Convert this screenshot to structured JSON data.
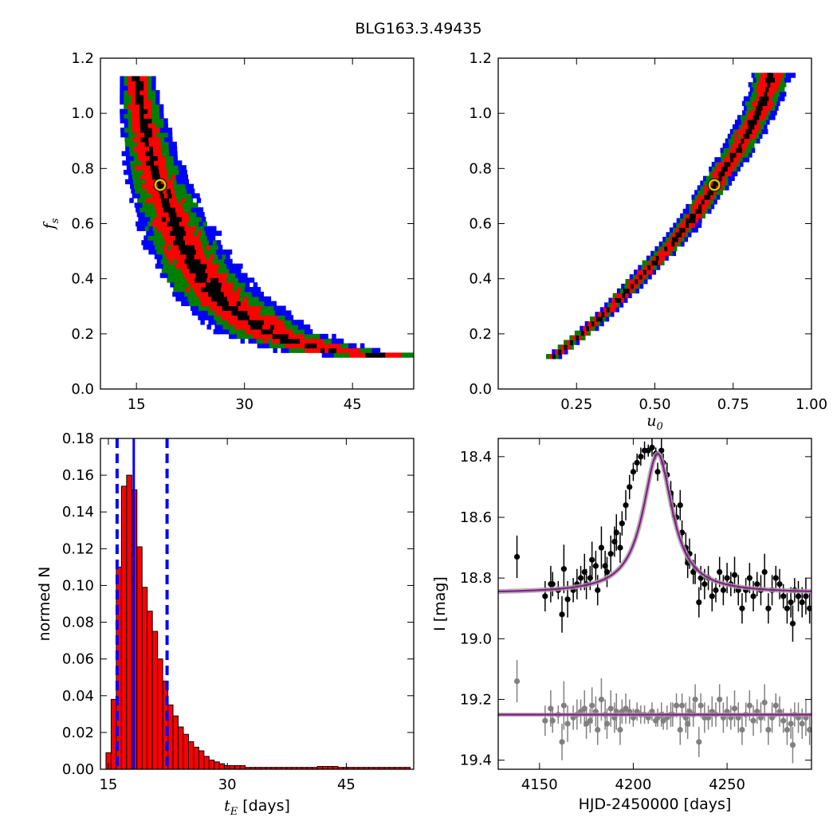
{
  "figure": {
    "title": "BLG163.3.49435"
  },
  "chart_data": [
    {
      "type": "heatmap",
      "panel": "top-left",
      "xlabel": "",
      "ylabel": "f",
      "ylabel_subscript": "s",
      "xlim": [
        10,
        53.5
      ],
      "ylim": [
        0,
        1.2
      ],
      "xticks": [
        15,
        30,
        45
      ],
      "yticks": [
        0.0,
        0.2,
        0.4,
        0.6,
        0.8,
        1.0,
        1.2
      ],
      "colors": {
        "blue": "#0000ff",
        "green": "#007f00",
        "red": "#ff0000",
        "black": "#000000"
      },
      "best_fit": {
        "x": 18.3,
        "y": 0.74
      },
      "ridge": [
        [
          14.8,
          1.13
        ],
        [
          15.5,
          1.0
        ],
        [
          16.2,
          0.9
        ],
        [
          17.0,
          0.8
        ],
        [
          18.0,
          0.72
        ],
        [
          19.2,
          0.64
        ],
        [
          20.5,
          0.56
        ],
        [
          22.0,
          0.48
        ],
        [
          24.0,
          0.4
        ],
        [
          26.5,
          0.32
        ],
        [
          29.5,
          0.26
        ],
        [
          33.0,
          0.2
        ],
        [
          37.0,
          0.16
        ],
        [
          42.0,
          0.13
        ],
        [
          48.0,
          0.115
        ]
      ]
    },
    {
      "type": "heatmap",
      "panel": "top-right",
      "xlabel": "u",
      "xlabel_subscript": "0",
      "ylabel": "",
      "xlim": [
        0,
        1.0
      ],
      "ylim": [
        0,
        1.2
      ],
      "xticks": [
        0.25,
        0.5,
        0.75,
        1.0
      ],
      "xtick_labels": [
        "0.25",
        "0.50",
        "0.75",
        "1.00"
      ],
      "yticks": [
        0.0,
        0.2,
        0.4,
        0.6,
        0.8,
        1.0,
        1.2
      ],
      "best_fit": {
        "x": 0.69,
        "y": 0.74
      },
      "ridge": [
        [
          0.17,
          0.11
        ],
        [
          0.25,
          0.18
        ],
        [
          0.35,
          0.28
        ],
        [
          0.45,
          0.4
        ],
        [
          0.55,
          0.52
        ],
        [
          0.62,
          0.62
        ],
        [
          0.69,
          0.74
        ],
        [
          0.76,
          0.86
        ],
        [
          0.82,
          0.98
        ],
        [
          0.87,
          1.13
        ]
      ]
    },
    {
      "type": "bar",
      "panel": "bottom-left",
      "xlabel": "t",
      "xlabel_subscript": "E",
      "xlabel_units": " [days]",
      "ylabel": "normed N",
      "xlim": [
        14,
        53.5
      ],
      "ylim": [
        0,
        0.18
      ],
      "xticks": [
        15,
        30,
        45
      ],
      "yticks": [
        0.0,
        0.02,
        0.04,
        0.06,
        0.08,
        0.1,
        0.12,
        0.14,
        0.16,
        0.18
      ],
      "ytick_labels": [
        "0.00",
        "0.02",
        "0.04",
        "0.06",
        "0.08",
        "0.10",
        "0.12",
        "0.14",
        "0.16",
        "0.18"
      ],
      "bin_start": 14.7,
      "bin_width": 0.65,
      "values": [
        0.009,
        0.038,
        0.11,
        0.154,
        0.16,
        0.152,
        0.121,
        0.099,
        0.086,
        0.075,
        0.06,
        0.048,
        0.035,
        0.029,
        0.023,
        0.019,
        0.015,
        0.012,
        0.01,
        0.007,
        0.005,
        0.004,
        0.003,
        0.002,
        0.002,
        0.002,
        0.002,
        0.001,
        0.001,
        0.001,
        0.001,
        0.001,
        0.001,
        0.001,
        0.001,
        0.001,
        0.001,
        0.001,
        0.001,
        0.001,
        0.001,
        0.0015,
        0.0015,
        0.0015,
        0.0015,
        0.001,
        0.001,
        0.001,
        0.001,
        0.001,
        0.001,
        0.001,
        0.001,
        0.001,
        0.001,
        0.001,
        0.001,
        0.001,
        0.001
      ],
      "median": 18.2,
      "interval": [
        16.1,
        22.4
      ],
      "bar_color": "#ff0000"
    },
    {
      "type": "scatter",
      "panel": "bottom-right",
      "xlabel": "HJD-2450000 [days]",
      "ylabel": "I [mag]",
      "xlim": [
        4128,
        4295
      ],
      "ylim": [
        19.43,
        18.34
      ],
      "xticks": [
        4150,
        4200,
        4250
      ],
      "yticks": [
        18.4,
        18.6,
        18.8,
        19.0,
        19.2,
        19.4
      ],
      "model": {
        "t0": 4213,
        "baseline": 18.85,
        "amplitude": 0.46,
        "width": 9.5
      },
      "residual_baseline": 19.25,
      "colors": {
        "data": "#000000",
        "residuals": "#808080",
        "model": "#8b1a8b"
      },
      "series": [
        {
          "values": [
            [
              4138,
              18.73,
              0.07
            ],
            [
              4153,
              18.86,
              0.05
            ],
            [
              4156,
              18.82,
              0.06
            ],
            [
              4157,
              18.82,
              0.04
            ],
            [
              4160,
              18.84,
              0.03
            ],
            [
              4162,
              18.92,
              0.06
            ],
            [
              4163,
              18.77,
              0.08
            ],
            [
              4165,
              18.87,
              0.06
            ],
            [
              4168,
              18.84,
              0.04
            ],
            [
              4170,
              18.82,
              0.05
            ],
            [
              4172,
              18.8,
              0.04
            ],
            [
              4174,
              18.78,
              0.06
            ],
            [
              4175,
              18.82,
              0.05
            ],
            [
              4177,
              18.8,
              0.04
            ],
            [
              4178,
              18.74,
              0.06
            ],
            [
              4180,
              18.76,
              0.05
            ],
            [
              4181,
              18.84,
              0.05
            ],
            [
              4183,
              18.7,
              0.07
            ],
            [
              4185,
              18.76,
              0.05
            ],
            [
              4186,
              18.78,
              0.05
            ],
            [
              4188,
              18.72,
              0.06
            ],
            [
              4190,
              18.68,
              0.05
            ],
            [
              4191,
              18.65,
              0.06
            ],
            [
              4193,
              18.7,
              0.05
            ],
            [
              4194,
              18.62,
              0.04
            ],
            [
              4196,
              18.56,
              0.05
            ],
            [
              4198,
              18.5,
              0.04
            ],
            [
              4200,
              18.45,
              0.03
            ],
            [
              4202,
              18.42,
              0.03
            ],
            [
              4204,
              18.4,
              0.03
            ],
            [
              4206,
              18.38,
              0.03
            ],
            [
              4208,
              18.38,
              0.02
            ],
            [
              4210,
              18.37,
              0.03
            ],
            [
              4212,
              18.39,
              0.02
            ],
            [
              4213,
              18.45,
              0.03
            ],
            [
              4215,
              18.38,
              0.04
            ],
            [
              4216,
              18.42,
              0.03
            ],
            [
              4218,
              18.46,
              0.04
            ],
            [
              4220,
              18.52,
              0.04
            ],
            [
              4221,
              18.56,
              0.04
            ],
            [
              4223,
              18.6,
              0.04
            ],
            [
              4225,
              18.56,
              0.05
            ],
            [
              4226,
              18.65,
              0.04
            ],
            [
              4228,
              18.7,
              0.05
            ],
            [
              4229,
              18.75,
              0.05
            ],
            [
              4230,
              18.72,
              0.05
            ],
            [
              4232,
              18.78,
              0.04
            ],
            [
              4233,
              18.77,
              0.05
            ],
            [
              4235,
              18.88,
              0.05
            ],
            [
              4236,
              18.8,
              0.04
            ],
            [
              4238,
              18.82,
              0.05
            ],
            [
              4240,
              18.8,
              0.04
            ],
            [
              4242,
              18.86,
              0.05
            ],
            [
              4244,
              18.84,
              0.04
            ],
            [
              4246,
              18.78,
              0.05
            ],
            [
              4248,
              18.84,
              0.05
            ],
            [
              4250,
              18.8,
              0.05
            ],
            [
              4252,
              18.82,
              0.04
            ],
            [
              4254,
              18.79,
              0.06
            ],
            [
              4256,
              18.84,
              0.05
            ],
            [
              4258,
              18.9,
              0.05
            ],
            [
              4260,
              18.84,
              0.04
            ],
            [
              4262,
              18.8,
              0.05
            ],
            [
              4264,
              18.86,
              0.05
            ],
            [
              4266,
              18.82,
              0.04
            ],
            [
              4268,
              18.84,
              0.05
            ],
            [
              4270,
              18.78,
              0.06
            ],
            [
              4272,
              18.9,
              0.05
            ],
            [
              4274,
              18.84,
              0.05
            ],
            [
              4276,
              18.8,
              0.04
            ],
            [
              4278,
              18.82,
              0.05
            ],
            [
              4280,
              18.86,
              0.04
            ],
            [
              4282,
              18.9,
              0.05
            ],
            [
              4284,
              18.88,
              0.05
            ],
            [
              4285,
              18.95,
              0.06
            ],
            [
              4286,
              18.84,
              0.04
            ],
            [
              4288,
              18.86,
              0.05
            ],
            [
              4290,
              18.88,
              0.05
            ],
            [
              4292,
              18.86,
              0.06
            ],
            [
              4294,
              18.9,
              0.05
            ]
          ]
        },
        {
          "values": [
            [
              4138,
              19.14,
              0.07
            ],
            [
              4153,
              19.27,
              0.05
            ],
            [
              4156,
              19.23,
              0.06
            ],
            [
              4157,
              19.27,
              0.04
            ],
            [
              4160,
              19.25,
              0.03
            ],
            [
              4162,
              19.34,
              0.06
            ],
            [
              4163,
              19.22,
              0.08
            ],
            [
              4165,
              19.28,
              0.06
            ],
            [
              4168,
              19.26,
              0.04
            ],
            [
              4170,
              19.25,
              0.05
            ],
            [
              4172,
              19.24,
              0.04
            ],
            [
              4174,
              19.23,
              0.06
            ],
            [
              4175,
              19.28,
              0.05
            ],
            [
              4177,
              19.27,
              0.04
            ],
            [
              4178,
              19.22,
              0.06
            ],
            [
              4180,
              19.24,
              0.05
            ],
            [
              4181,
              19.3,
              0.05
            ],
            [
              4183,
              19.2,
              0.07
            ],
            [
              4185,
              19.25,
              0.05
            ],
            [
              4186,
              19.28,
              0.05
            ],
            [
              4188,
              19.23,
              0.06
            ],
            [
              4190,
              19.26,
              0.05
            ],
            [
              4191,
              19.24,
              0.06
            ],
            [
              4193,
              19.3,
              0.05
            ],
            [
              4194,
              19.24,
              0.04
            ],
            [
              4196,
              19.23,
              0.05
            ],
            [
              4198,
              19.24,
              0.04
            ],
            [
              4200,
              19.26,
              0.03
            ],
            [
              4202,
              19.24,
              0.03
            ],
            [
              4204,
              19.25,
              0.03
            ],
            [
              4206,
              19.25,
              0.03
            ],
            [
              4208,
              19.26,
              0.02
            ],
            [
              4210,
              19.24,
              0.03
            ],
            [
              4212,
              19.27,
              0.02
            ],
            [
              4213,
              19.26,
              0.03
            ],
            [
              4215,
              19.25,
              0.04
            ],
            [
              4216,
              19.27,
              0.03
            ],
            [
              4218,
              19.26,
              0.04
            ],
            [
              4220,
              19.25,
              0.04
            ],
            [
              4221,
              19.25,
              0.04
            ],
            [
              4223,
              19.22,
              0.04
            ],
            [
              4225,
              19.3,
              0.05
            ],
            [
              4226,
              19.22,
              0.04
            ],
            [
              4228,
              19.26,
              0.05
            ],
            [
              4229,
              19.28,
              0.05
            ],
            [
              4230,
              19.24,
              0.05
            ],
            [
              4232,
              19.25,
              0.04
            ],
            [
              4233,
              19.2,
              0.05
            ],
            [
              4235,
              19.34,
              0.05
            ],
            [
              4236,
              19.22,
              0.04
            ],
            [
              4238,
              19.26,
              0.05
            ],
            [
              4240,
              19.26,
              0.04
            ],
            [
              4242,
              19.24,
              0.05
            ],
            [
              4244,
              19.25,
              0.04
            ],
            [
              4246,
              19.2,
              0.05
            ],
            [
              4248,
              19.26,
              0.05
            ],
            [
              4250,
              19.24,
              0.05
            ],
            [
              4252,
              19.26,
              0.04
            ],
            [
              4254,
              19.23,
              0.06
            ],
            [
              4256,
              19.26,
              0.05
            ],
            [
              4258,
              19.3,
              0.05
            ],
            [
              4260,
              19.25,
              0.04
            ],
            [
              4262,
              19.22,
              0.05
            ],
            [
              4264,
              19.27,
              0.05
            ],
            [
              4266,
              19.24,
              0.04
            ],
            [
              4268,
              19.26,
              0.05
            ],
            [
              4270,
              19.21,
              0.06
            ],
            [
              4272,
              19.3,
              0.05
            ],
            [
              4274,
              19.26,
              0.05
            ],
            [
              4276,
              19.22,
              0.04
            ],
            [
              4278,
              19.24,
              0.05
            ],
            [
              4280,
              19.27,
              0.04
            ],
            [
              4282,
              19.3,
              0.05
            ],
            [
              4284,
              19.28,
              0.05
            ],
            [
              4285,
              19.35,
              0.06
            ],
            [
              4286,
              19.25,
              0.04
            ],
            [
              4288,
              19.26,
              0.05
            ],
            [
              4290,
              19.28,
              0.05
            ],
            [
              4292,
              19.26,
              0.06
            ],
            [
              4294,
              19.3,
              0.05
            ]
          ]
        }
      ]
    }
  ]
}
